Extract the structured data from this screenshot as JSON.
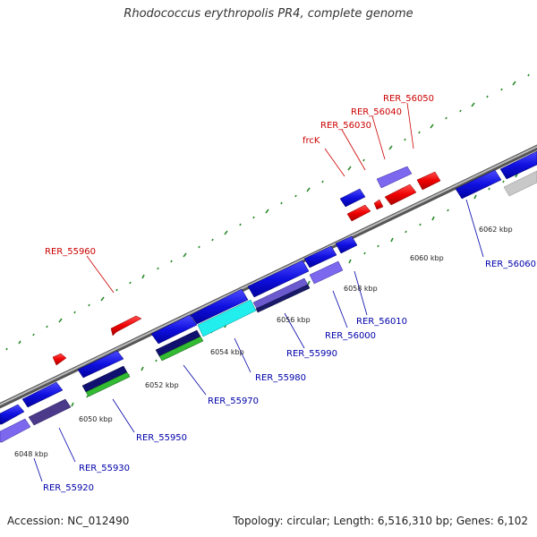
{
  "title": "Rhodococcus erythropolis PR4, complete genome",
  "footer": {
    "accession": "Accession: NC_012490",
    "summary": "Topology: circular; Length: 6,516,310 bp; Genes: 6,102"
  },
  "colors": {
    "forward_label": "#cc0000",
    "reverse_label": "#0000aa",
    "tick": "#2a8a2a",
    "backbone": "#888888"
  },
  "kbp_labels": [
    "6048 kbp",
    "6050 kbp",
    "6052 kbp",
    "6054 kbp",
    "6056 kbp",
    "6058 kbp",
    "6060 kbp",
    "6062 kbp"
  ],
  "gene_labels": {
    "top": [
      "RER_55960",
      "frcK",
      "RER_56030",
      "RER_56040",
      "RER_56050"
    ],
    "bottom": [
      "RER_55920",
      "RER_55930",
      "RER_55950",
      "RER_55970",
      "RER_55980",
      "RER_55990",
      "RER_56000",
      "RER_56010",
      "RER_56060"
    ]
  }
}
